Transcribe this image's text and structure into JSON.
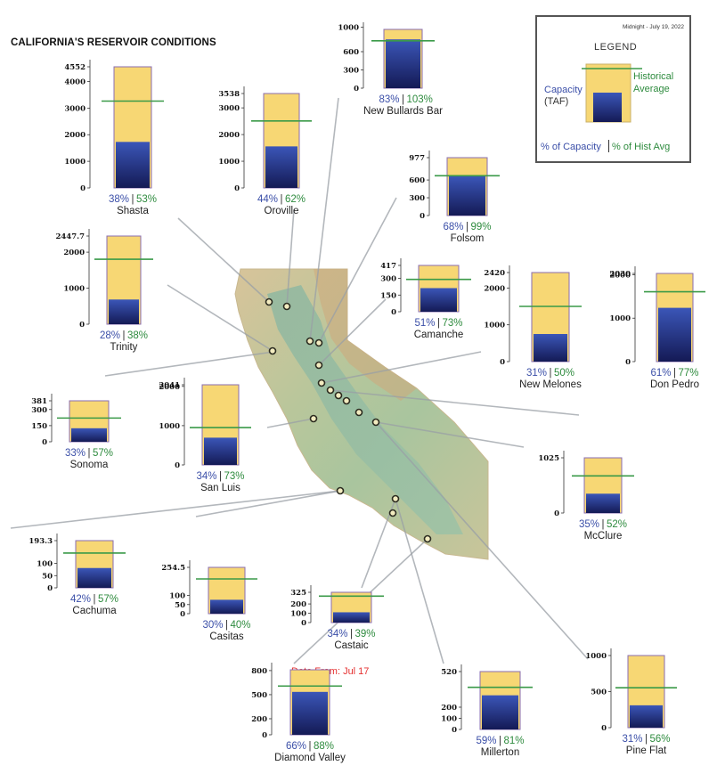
{
  "header": {
    "title": "CALIFORNIA'S RESERVOIR CONDITIONS",
    "data_from": "Data From: Jul 17"
  },
  "legend": {
    "date": "Midnight - July 19, 2022",
    "title": "LEGEND",
    "capacity_label": "Capacity",
    "taf_label": "(TAF)",
    "historical_label_1": "Historical",
    "historical_label_2": "Average",
    "pct_capacity_label": "% of Capacity",
    "pct_hist_label": "% of Hist Avg"
  },
  "colors": {
    "capacity_fill": "#f7d774",
    "capacity_border": "#8a6cb0",
    "storage_top": "#3b56b8",
    "storage_bottom": "#141a55",
    "historical_line": "#3a9a48",
    "pct_capacity_text": "#3b4fa8",
    "pct_hist_text": "#2e8b3e",
    "map_green": "#a8c49a",
    "map_tan": "#d9c7a3"
  },
  "chart_data": [
    {
      "type": "bar",
      "name": "Shasta",
      "capacity": 4552,
      "ticks": [
        0,
        1000,
        2000,
        3000,
        4000,
        4552
      ],
      "storage_pct": 38,
      "hist_pct": 53,
      "pct_capacity_label": "38%",
      "pct_hist_label": "53%"
    },
    {
      "type": "bar",
      "name": "Oroville",
      "capacity": 3538,
      "ticks": [
        0,
        1000,
        2000,
        3000,
        3538
      ],
      "storage_pct": 44,
      "hist_pct": 62,
      "pct_capacity_label": "44%",
      "pct_hist_label": "62%"
    },
    {
      "type": "bar",
      "name": "New Bullards Bar",
      "capacity": 966,
      "ticks": [
        0,
        300,
        600,
        1000
      ],
      "storage_pct": 83,
      "hist_pct": 103,
      "pct_capacity_label": "83%",
      "pct_hist_label": "103%"
    },
    {
      "type": "bar",
      "name": "Folsom",
      "capacity": 977,
      "ticks": [
        0,
        300,
        600,
        977
      ],
      "storage_pct": 68,
      "hist_pct": 99,
      "pct_capacity_label": "68%",
      "pct_hist_label": "99%"
    },
    {
      "type": "bar",
      "name": "Trinity",
      "capacity": 2447.7,
      "ticks": [
        0,
        1000,
        2000,
        "2447.7"
      ],
      "storage_pct": 28,
      "hist_pct": 38,
      "pct_capacity_label": "28%",
      "pct_hist_label": "38%"
    },
    {
      "type": "bar",
      "name": "Camanche",
      "capacity": 417,
      "ticks": [
        0,
        150,
        300,
        417
      ],
      "storage_pct": 51,
      "hist_pct": 73,
      "pct_capacity_label": "51%",
      "pct_hist_label": "73%"
    },
    {
      "type": "bar",
      "name": "New Melones",
      "capacity": 2420,
      "ticks": [
        0,
        1000,
        2000,
        2420
      ],
      "storage_pct": 31,
      "hist_pct": 50,
      "pct_capacity_label": "31%",
      "pct_hist_label": "50%"
    },
    {
      "type": "bar",
      "name": "Don Pedro",
      "capacity": 2030,
      "ticks": [
        0,
        1000,
        2000,
        2030
      ],
      "storage_pct": 61,
      "hist_pct": 77,
      "pct_capacity_label": "61%",
      "pct_hist_label": "77%"
    },
    {
      "type": "bar",
      "name": "Sonoma",
      "capacity": 381,
      "ticks": [
        0,
        150,
        300,
        381
      ],
      "storage_pct": 33,
      "hist_pct": 57,
      "pct_capacity_label": "33%",
      "pct_hist_label": "57%"
    },
    {
      "type": "bar",
      "name": "San Luis",
      "capacity": 2041,
      "ticks": [
        0,
        1000,
        2000,
        2041
      ],
      "storage_pct": 34,
      "hist_pct": 73,
      "pct_capacity_label": "34%",
      "pct_hist_label": "73%"
    },
    {
      "type": "bar",
      "name": "McClure",
      "capacity": 1025,
      "ticks": [
        0,
        1025
      ],
      "storage_pct": 35,
      "hist_pct": 52,
      "pct_capacity_label": "35%",
      "pct_hist_label": "52%"
    },
    {
      "type": "bar",
      "name": "Cachuma",
      "capacity": 193.3,
      "ticks": [
        0,
        50,
        100,
        "193.3"
      ],
      "storage_pct": 42,
      "hist_pct": 57,
      "pct_capacity_label": "42%",
      "pct_hist_label": "57%"
    },
    {
      "type": "bar",
      "name": "Casitas",
      "capacity": 254.5,
      "ticks": [
        0,
        50,
        100,
        "254.5"
      ],
      "storage_pct": 30,
      "hist_pct": 40,
      "pct_capacity_label": "30%",
      "pct_hist_label": "40%"
    },
    {
      "type": "bar",
      "name": "Castaic",
      "capacity": 325,
      "ticks": [
        0,
        100,
        200,
        325
      ],
      "storage_pct": 34,
      "hist_pct": 39,
      "pct_capacity_label": "34%",
      "pct_hist_label": "39%"
    },
    {
      "type": "bar",
      "name": "Diamond Valley",
      "capacity": 810,
      "ticks": [
        0,
        200,
        500,
        800
      ],
      "storage_pct": 66,
      "hist_pct": 88,
      "pct_capacity_label": "66%",
      "pct_hist_label": "88%"
    },
    {
      "type": "bar",
      "name": "Millerton",
      "capacity": 520,
      "ticks": [
        0,
        100,
        200,
        520
      ],
      "storage_pct": 59,
      "hist_pct": 81,
      "pct_capacity_label": "59%",
      "pct_hist_label": "81%"
    },
    {
      "type": "bar",
      "name": "Pine Flat",
      "capacity": 1000,
      "ticks": [
        0,
        500,
        1000
      ],
      "storage_pct": 31,
      "hist_pct": 56,
      "pct_capacity_label": "31%",
      "pct_hist_label": "56%"
    }
  ]
}
